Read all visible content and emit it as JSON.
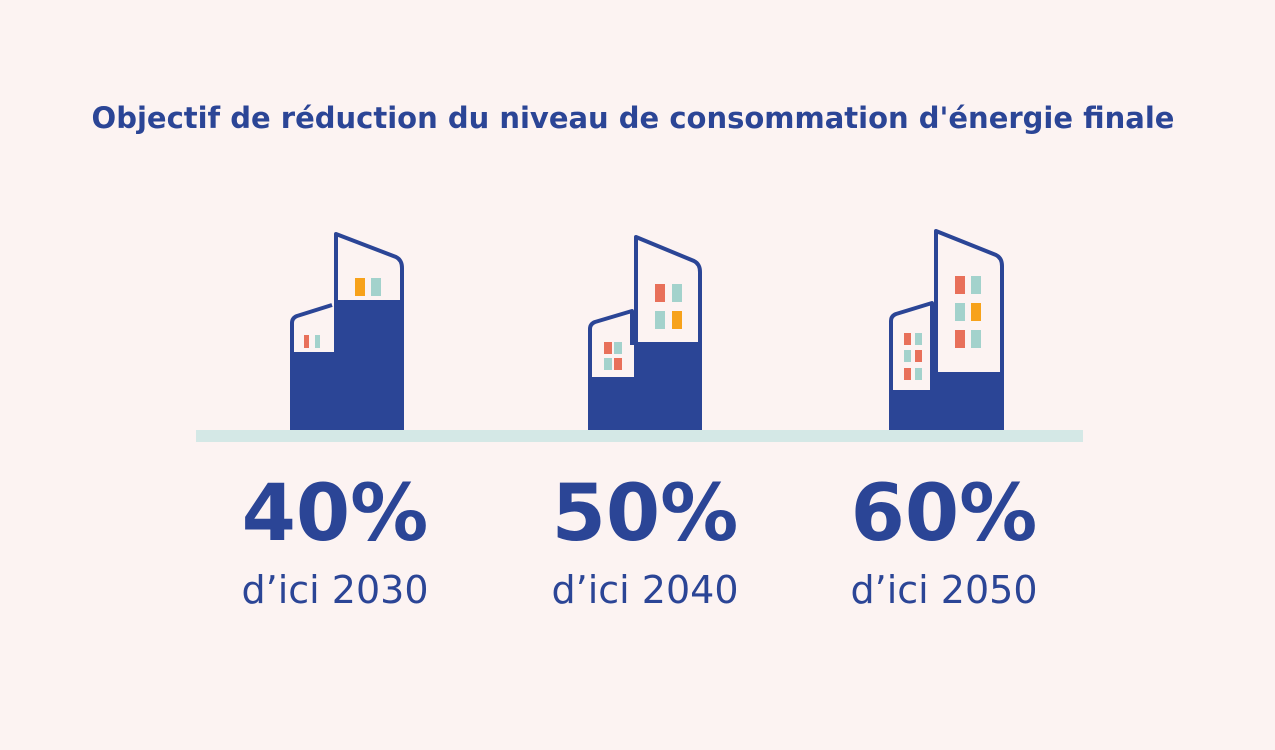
{
  "header": {
    "title": "Objectif de réduction du niveau de consommation d'énergie finale"
  },
  "items": [
    {
      "percent": "40%",
      "label": "d’ici 2030"
    },
    {
      "percent": "50%",
      "label": "d’ici 2040"
    },
    {
      "percent": "60%",
      "label": "d’ici 2050"
    }
  ]
}
